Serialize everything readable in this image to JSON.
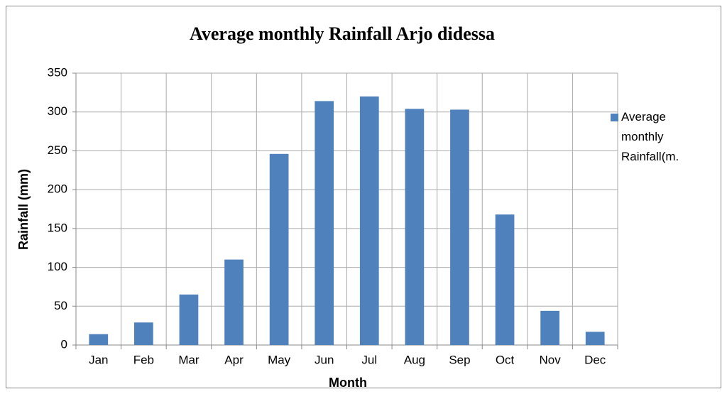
{
  "chart_data": {
    "type": "bar",
    "title": "Average monthly Rainfall Arjo didessa",
    "x_label": "Month",
    "y_label": "Rainfall (mm)",
    "categories": [
      "Jan",
      "Feb",
      "Mar",
      "Apr",
      "May",
      "Jun",
      "Jul",
      "Aug",
      "Sep",
      "Oct",
      "Nov",
      "Dec"
    ],
    "series": [
      {
        "name": "Average monthly Rainfall(m.",
        "color": "#4f81bd",
        "values": [
          14,
          29,
          65,
          110,
          246,
          314,
          320,
          304,
          303,
          168,
          44,
          17
        ]
      }
    ],
    "ylim": [
      0,
      350
    ],
    "yticks": [
      0,
      50,
      100,
      150,
      200,
      250,
      300,
      350
    ],
    "grid": true,
    "legend": "right"
  }
}
